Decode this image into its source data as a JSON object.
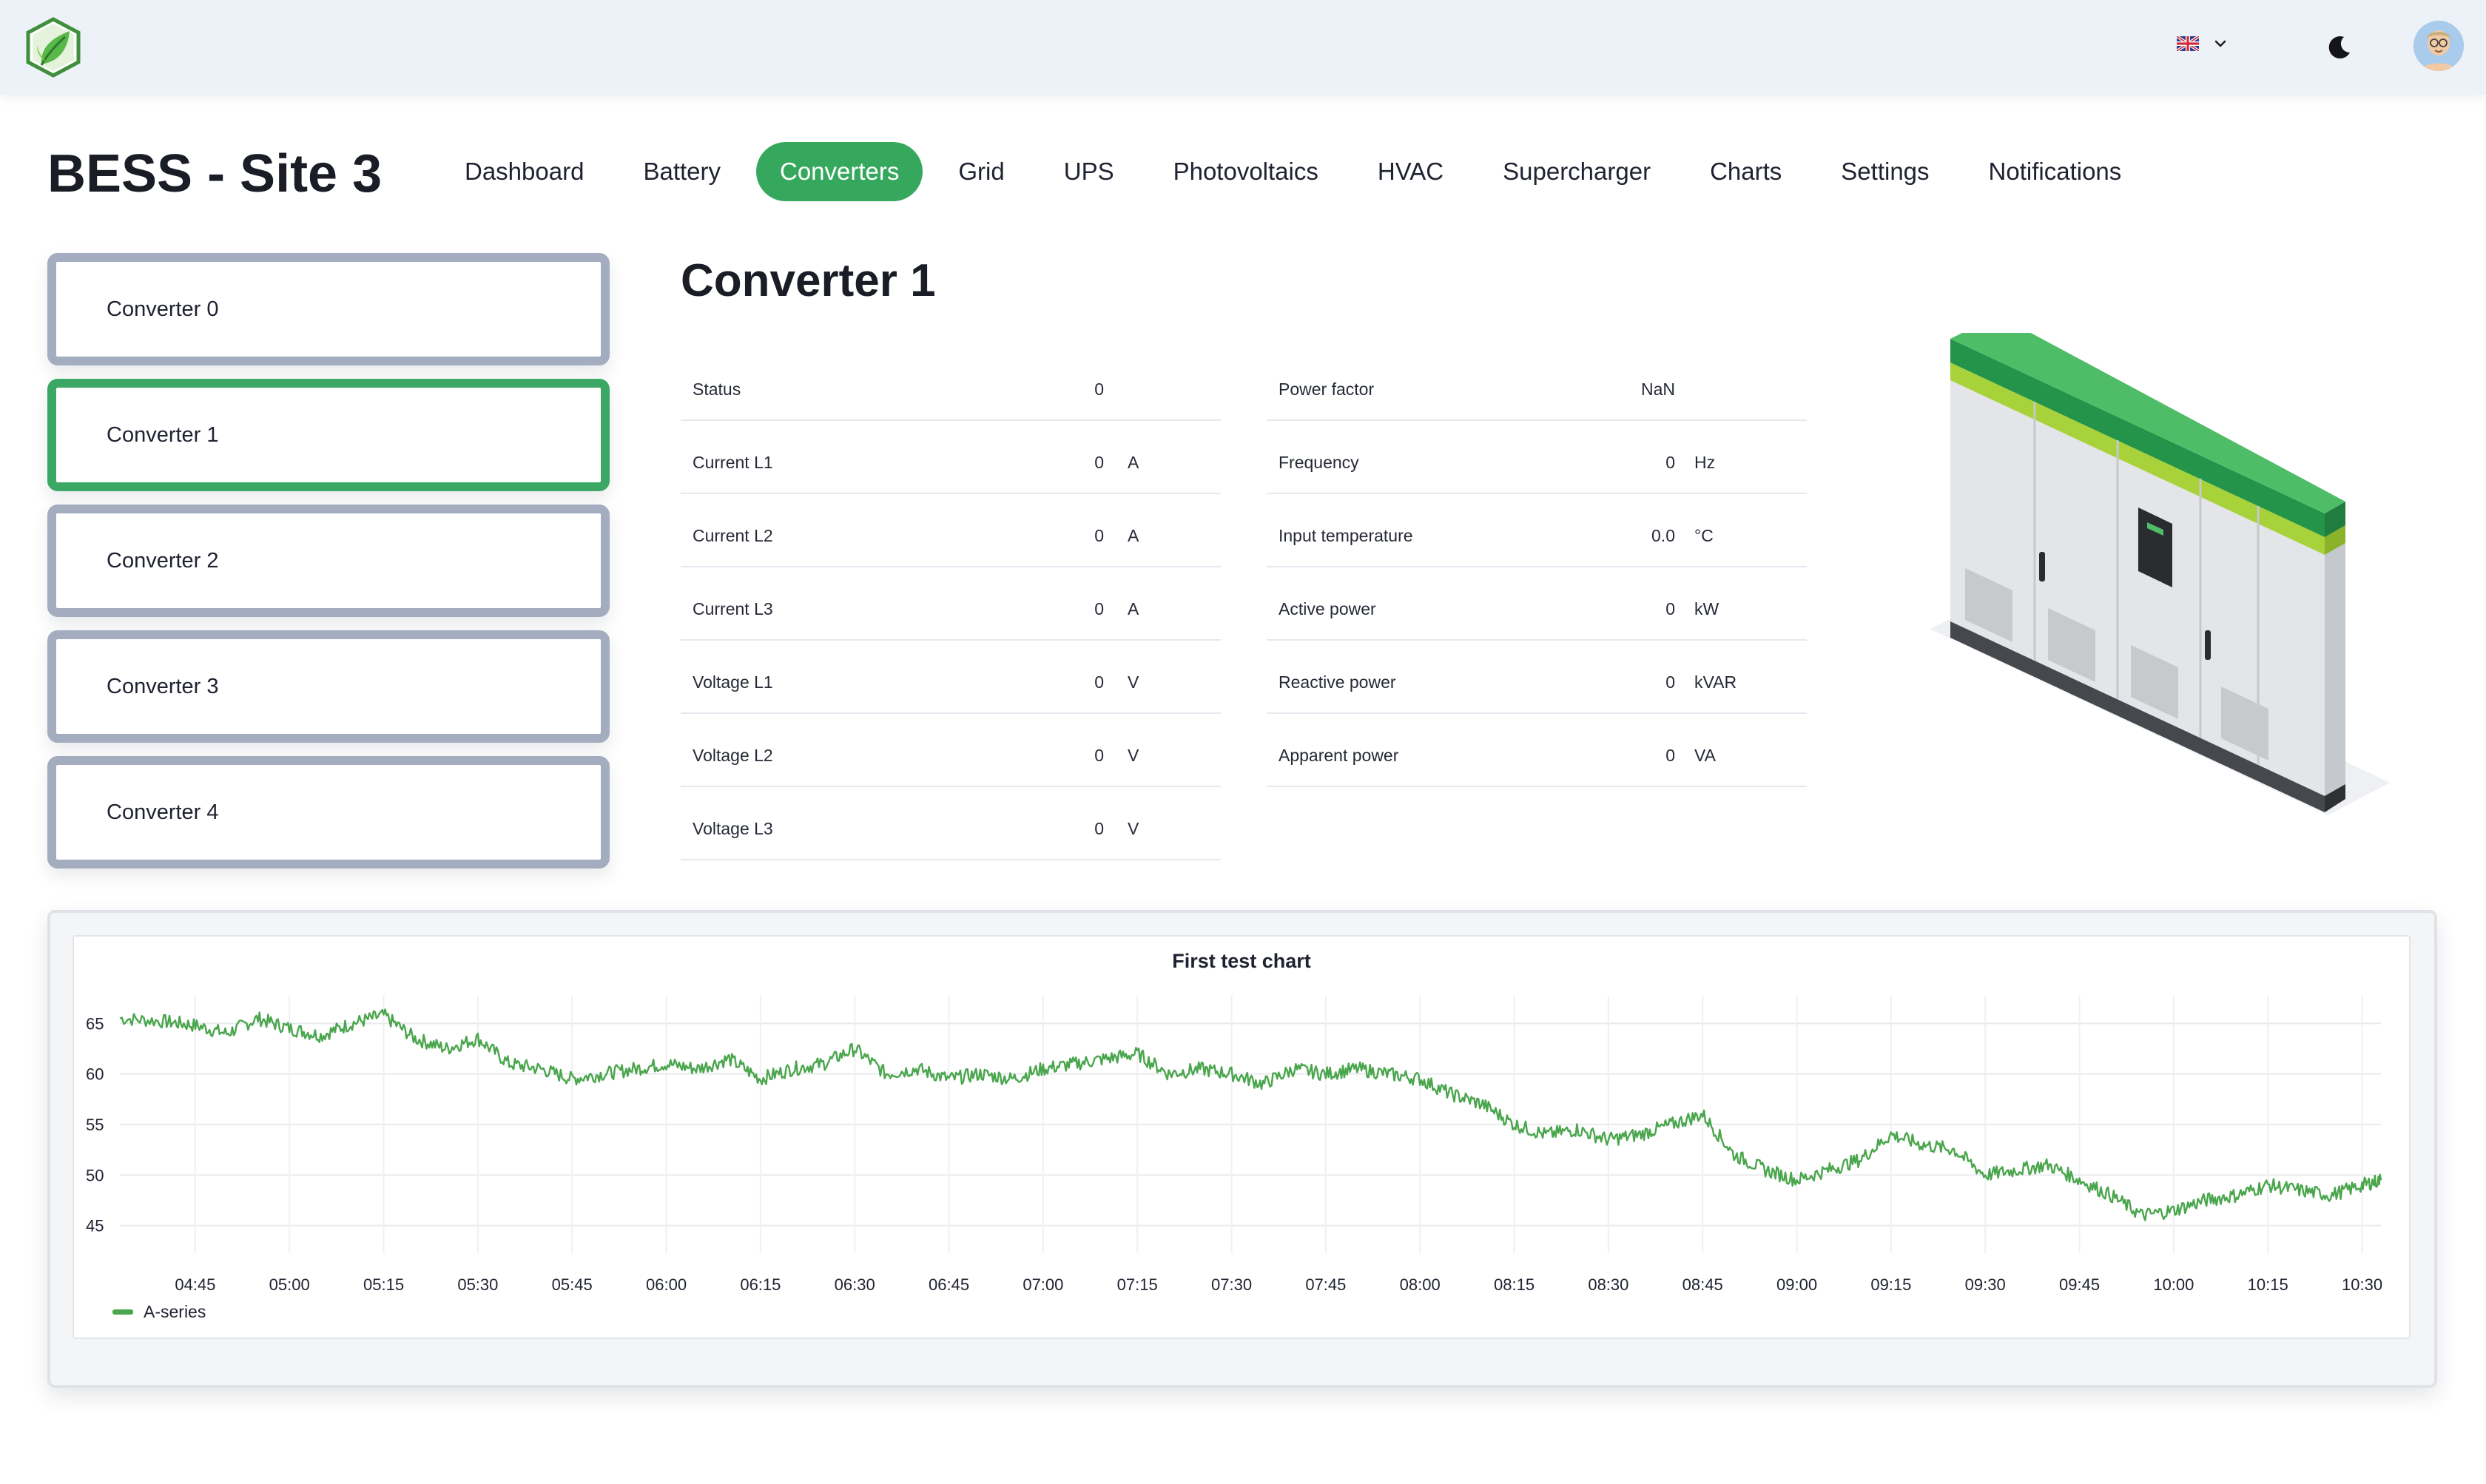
{
  "header": {
    "site_title": "BESS - Site 3",
    "nav": [
      {
        "label": "Dashboard",
        "active": false
      },
      {
        "label": "Battery",
        "active": false
      },
      {
        "label": "Converters",
        "active": true
      },
      {
        "label": "Grid",
        "active": false
      },
      {
        "label": "UPS",
        "active": false
      },
      {
        "label": "Photovoltaics",
        "active": false
      },
      {
        "label": "HVAC",
        "active": false
      },
      {
        "label": "Supercharger",
        "active": false
      },
      {
        "label": "Charts",
        "active": false
      },
      {
        "label": "Settings",
        "active": false
      },
      {
        "label": "Notifications",
        "active": false
      }
    ]
  },
  "topbar": {
    "logo_icon": "leaf-hexagon-logo",
    "language_icon": "uk-flag-icon",
    "theme_icon": "moon-icon",
    "avatar_icon": "user-avatar"
  },
  "converters": [
    {
      "label": "Converter 0",
      "selected": false
    },
    {
      "label": "Converter 1",
      "selected": true
    },
    {
      "label": "Converter 2",
      "selected": false
    },
    {
      "label": "Converter 3",
      "selected": false
    },
    {
      "label": "Converter 4",
      "selected": false
    }
  ],
  "detail": {
    "title": "Converter 1",
    "left_metrics": [
      {
        "label": "Status",
        "value": "0",
        "unit": ""
      },
      {
        "label": "Current L1",
        "value": "0",
        "unit": "A"
      },
      {
        "label": "Current L2",
        "value": "0",
        "unit": "A"
      },
      {
        "label": "Current L3",
        "value": "0",
        "unit": "A"
      },
      {
        "label": "Voltage L1",
        "value": "0",
        "unit": "V"
      },
      {
        "label": "Voltage L2",
        "value": "0",
        "unit": "V"
      },
      {
        "label": "Voltage L3",
        "value": "0",
        "unit": "V"
      }
    ],
    "right_metrics": [
      {
        "label": "Power factor",
        "value": "NaN",
        "unit": ""
      },
      {
        "label": "Frequency",
        "value": "0",
        "unit": "Hz"
      },
      {
        "label": "Input temperature",
        "value": "0.0",
        "unit": "°C"
      },
      {
        "label": "Active power",
        "value": "0",
        "unit": "kW"
      },
      {
        "label": "Reactive power",
        "value": "0",
        "unit": "kVAR"
      },
      {
        "label": "Apparent power",
        "value": "0",
        "unit": "VA"
      }
    ]
  },
  "colors": {
    "accent": "#36a85d",
    "card_border": "#a3adbf",
    "series": "#4aa64d"
  },
  "chart_data": {
    "type": "line",
    "title": "First test chart",
    "xlabel": "",
    "ylabel": "",
    "x_ticks": [
      "04:45",
      "05:00",
      "05:15",
      "05:30",
      "05:45",
      "06:00",
      "06:15",
      "06:30",
      "06:45",
      "07:00",
      "07:15",
      "07:30",
      "07:45",
      "08:00",
      "08:15",
      "08:30",
      "08:45",
      "09:00",
      "09:15",
      "09:30",
      "09:45",
      "10:00",
      "10:15",
      "10:30"
    ],
    "y_ticks": [
      45,
      50,
      55,
      60,
      65
    ],
    "ylim": [
      43,
      67
    ],
    "x_range": [
      "04:33",
      "10:33"
    ],
    "grid": true,
    "legend_position": "bottom-left",
    "series": [
      {
        "name": "A-series",
        "color": "#4aa64d",
        "x": [
          "04:33",
          "04:40",
          "04:45",
          "04:50",
          "04:55",
          "05:00",
          "05:05",
          "05:10",
          "05:15",
          "05:20",
          "05:25",
          "05:30",
          "05:35",
          "05:40",
          "05:45",
          "05:50",
          "05:55",
          "06:00",
          "06:05",
          "06:10",
          "06:15",
          "06:20",
          "06:25",
          "06:30",
          "06:35",
          "06:40",
          "06:45",
          "06:50",
          "06:55",
          "07:00",
          "07:05",
          "07:10",
          "07:15",
          "07:20",
          "07:25",
          "07:30",
          "07:35",
          "07:40",
          "07:45",
          "07:50",
          "07:55",
          "08:00",
          "08:05",
          "08:10",
          "08:15",
          "08:20",
          "08:25",
          "08:30",
          "08:35",
          "08:40",
          "08:45",
          "08:50",
          "08:55",
          "09:00",
          "09:05",
          "09:10",
          "09:15",
          "09:20",
          "09:25",
          "09:30",
          "09:35",
          "09:40",
          "09:45",
          "09:50",
          "09:55",
          "10:00",
          "10:05",
          "10:10",
          "10:15",
          "10:20",
          "10:25",
          "10:30",
          "10:33"
        ],
        "y": [
          65.5,
          65.2,
          64.8,
          64.0,
          65.5,
          64.5,
          63.8,
          65.0,
          65.8,
          63.5,
          62.5,
          63.5,
          61.0,
          60.5,
          59.5,
          60.0,
          60.5,
          61.0,
          60.5,
          61.5,
          59.5,
          60.5,
          61.0,
          62.5,
          60.0,
          60.5,
          59.5,
          60.0,
          59.5,
          60.5,
          61.0,
          61.5,
          62.0,
          60.0,
          60.5,
          60.0,
          59.0,
          60.5,
          60.0,
          60.5,
          60.0,
          59.5,
          58.0,
          57.0,
          55.0,
          54.0,
          54.5,
          53.5,
          54.0,
          55.0,
          56.0,
          52.0,
          50.5,
          49.5,
          50.5,
          51.5,
          54.0,
          53.0,
          52.5,
          50.0,
          50.5,
          51.0,
          49.5,
          48.0,
          46.0,
          46.5,
          47.5,
          48.0,
          49.0,
          48.5,
          48.0,
          49.0,
          49.5
        ]
      }
    ]
  }
}
